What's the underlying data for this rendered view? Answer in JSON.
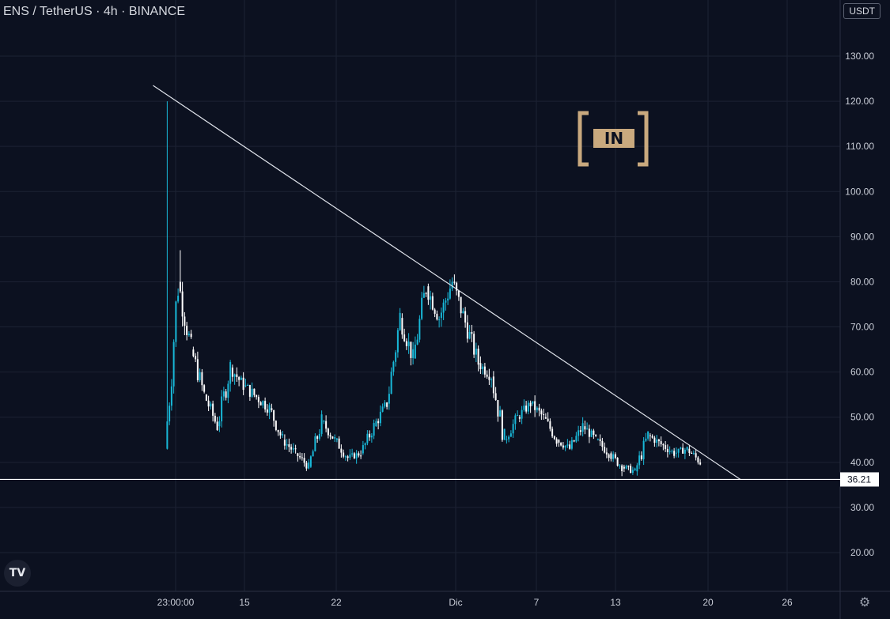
{
  "header": {
    "title": "ENS / TetherUS · 4h · BINANCE",
    "currency_badge": "USDT"
  },
  "logos": {
    "watermark_text": "[IN]",
    "platform_logo_text": "TV"
  },
  "icons": {
    "settings": "gear-icon"
  },
  "colors": {
    "background": "#0c1120",
    "grid": "#1c2233",
    "up_candle": "#18b8d8",
    "down_candle": "#ffffff",
    "trendline": "#dfe3ea",
    "support_line": "#ffffff",
    "axis_text": "#c8ccd6",
    "watermark": "#c9a97e"
  },
  "chart_data": {
    "type": "candlestick",
    "title": "ENS / TetherUS · 4h · BINANCE",
    "y_axis": {
      "position": "right",
      "unit": "USDT",
      "ticks": [
        "20.00",
        "30.00",
        "40.00",
        "50.00",
        "60.00",
        "70.00",
        "80.00",
        "90.00",
        "100.00",
        "110.00",
        "120.00",
        "130.00"
      ],
      "range": [
        13,
        144
      ]
    },
    "x_axis": {
      "ticks": [
        "23:00:00",
        "15",
        "22",
        "Dic",
        "7",
        "13",
        "20",
        "26"
      ]
    },
    "last_price_label": "36.21",
    "price_path_approx": [
      {
        "t": "2021-11-09",
        "price": 43,
        "high": 120
      },
      {
        "t": "2021-11-10",
        "price": 80,
        "high": 87
      },
      {
        "t": "2021-11-11",
        "price": 65
      },
      {
        "t": "2021-11-12",
        "price": 55
      },
      {
        "t": "2021-11-13",
        "price": 48
      },
      {
        "t": "2021-11-14",
        "price": 61
      },
      {
        "t": "2021-11-15",
        "price": 57
      },
      {
        "t": "2021-11-17",
        "price": 52
      },
      {
        "t": "2021-11-18",
        "price": 45
      },
      {
        "t": "2021-11-19",
        "price": 42
      },
      {
        "t": "2021-11-20",
        "price": 39
      },
      {
        "t": "2021-11-21",
        "price": 49
      },
      {
        "t": "2021-11-22",
        "price": 45
      },
      {
        "t": "2021-11-23",
        "price": 41
      },
      {
        "t": "2021-11-24",
        "price": 42
      },
      {
        "t": "2021-11-25",
        "price": 48
      },
      {
        "t": "2021-11-26",
        "price": 53
      },
      {
        "t": "2021-11-27",
        "price": 72
      },
      {
        "t": "2021-11-28",
        "price": 63
      },
      {
        "t": "2021-11-29",
        "price": 79
      },
      {
        "t": "2021-11-30",
        "price": 72
      },
      {
        "t": "2021-12-01",
        "price": 80
      },
      {
        "t": "2021-12-02",
        "price": 71
      },
      {
        "t": "2021-12-03",
        "price": 62
      },
      {
        "t": "2021-12-04",
        "price": 59
      },
      {
        "t": "2021-12-05",
        "price": 45
      },
      {
        "t": "2021-12-06",
        "price": 50
      },
      {
        "t": "2021-12-07",
        "price": 53
      },
      {
        "t": "2021-12-08",
        "price": 50
      },
      {
        "t": "2021-12-09",
        "price": 45
      },
      {
        "t": "2021-12-10",
        "price": 43
      },
      {
        "t": "2021-12-11",
        "price": 48
      },
      {
        "t": "2021-12-12",
        "price": 45
      },
      {
        "t": "2021-12-13",
        "price": 42
      },
      {
        "t": "2021-12-14",
        "price": 39
      },
      {
        "t": "2021-12-15",
        "price": 38
      },
      {
        "t": "2021-12-16",
        "price": 46
      },
      {
        "t": "2021-12-17",
        "price": 44
      },
      {
        "t": "2021-12-18",
        "price": 42
      },
      {
        "t": "2021-12-19",
        "price": 43
      },
      {
        "t": "2021-12-20",
        "price": 40
      }
    ],
    "overlays": {
      "descending_trendline": {
        "from": {
          "t": "2021-11-08",
          "price": 123.5
        },
        "to": {
          "t": "2021-12-23",
          "price": 36.21
        }
      },
      "horizontal_support": {
        "price": 36.21
      }
    },
    "grid": true,
    "legend": "none"
  }
}
